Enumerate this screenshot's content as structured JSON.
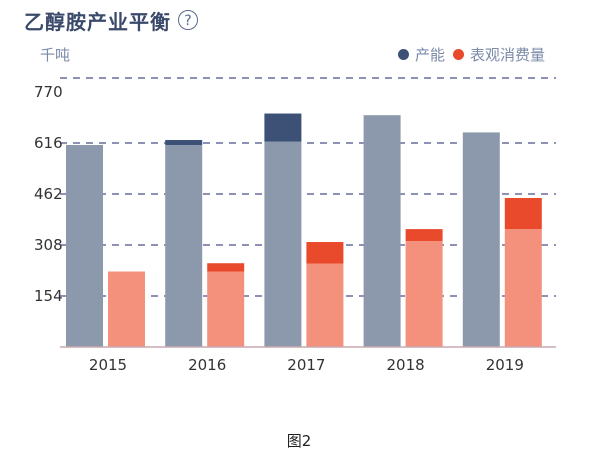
{
  "header": {
    "title": "乙醇胺产业平衡",
    "help_icon": "question-circle-icon",
    "help_label": "?"
  },
  "caption": "图2",
  "chart_data": {
    "type": "bar",
    "title": "乙醇胺产业平衡",
    "ylabel": "千吨",
    "xlabel": "",
    "ylim": [
      0,
      770
    ],
    "yticks": [
      154,
      308,
      462,
      616,
      770
    ],
    "grid": true,
    "legend_position": "top-right",
    "categories": [
      "2015",
      "2016",
      "2017",
      "2018",
      "2019"
    ],
    "series": [
      {
        "name": "产能",
        "color": "#3d5177",
        "base_color": "#8c99ad",
        "base_values": [
          610,
          610,
          620,
          700,
          648
        ],
        "values": [
          610,
          625,
          705,
          700,
          648
        ]
      },
      {
        "name": "表观消费量",
        "color": "#ea4a2c",
        "base_color": "#f4917c",
        "base_values": [
          228,
          228,
          252,
          320,
          356
        ],
        "values": [
          228,
          253,
          317,
          356,
          450
        ]
      }
    ]
  }
}
